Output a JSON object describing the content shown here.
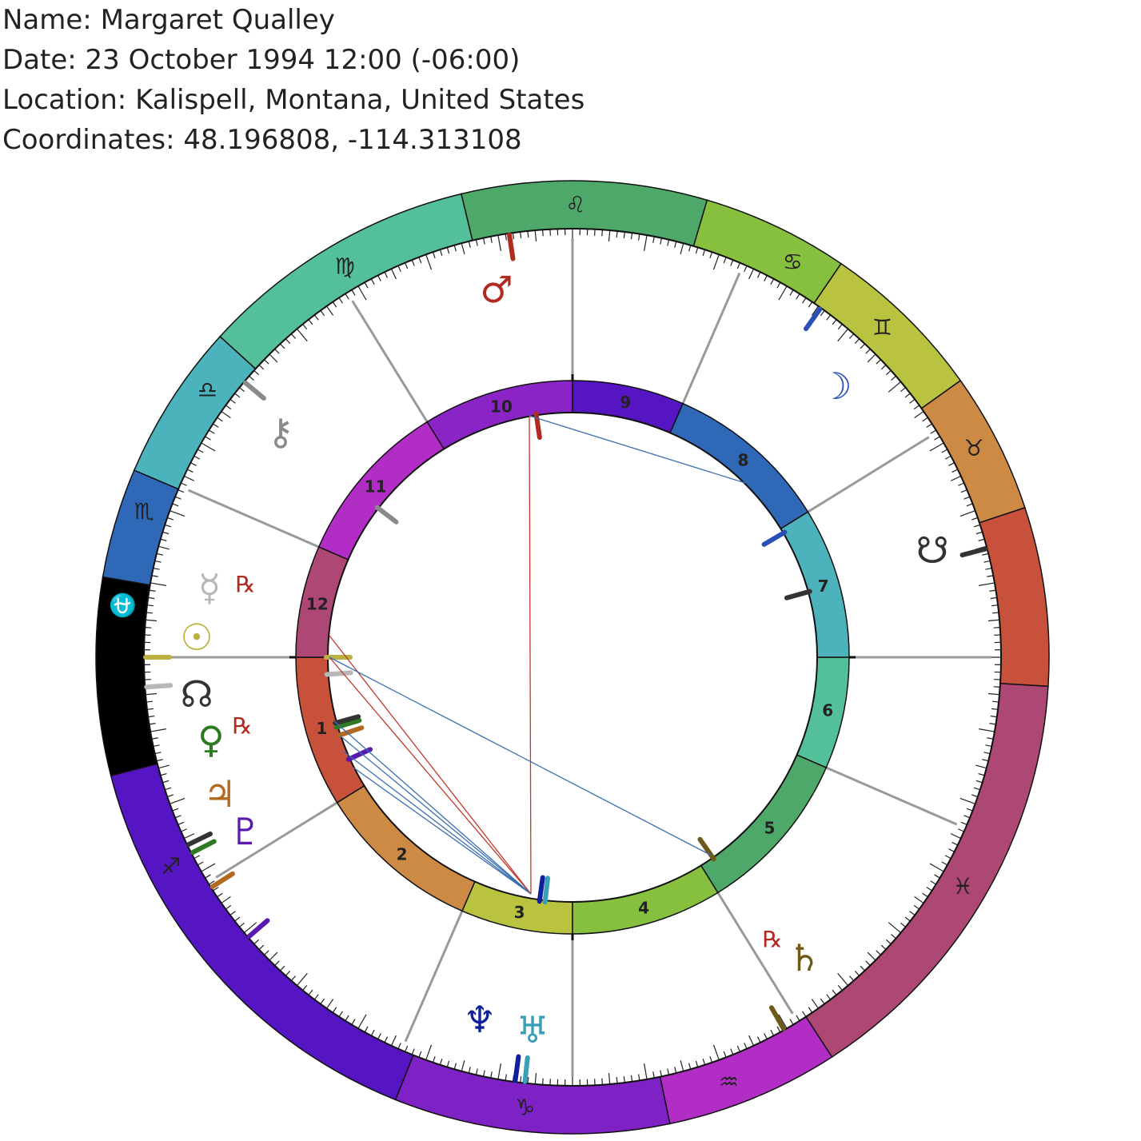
{
  "header": {
    "name": "Name: Margaret Qualley",
    "date": "Date: 23 October 1994 12:00 (-06:00)",
    "location": "Location: Kalispell, Montana, United States",
    "coordinates": "Coordinates: 48.196808, -114.313108"
  },
  "zodiac": [
    {
      "sign": "aries",
      "glyph": "♈",
      "color": "#c8513c"
    },
    {
      "sign": "taurus",
      "glyph": "♉",
      "color": "#cc8a45"
    },
    {
      "sign": "gemini",
      "glyph": "♊",
      "color": "#b9c340"
    },
    {
      "sign": "cancer",
      "glyph": "♋",
      "color": "#86c03e"
    },
    {
      "sign": "leo",
      "glyph": "♌",
      "color": "#4ea86a"
    },
    {
      "sign": "virgo",
      "glyph": "♍",
      "color": "#54c09a"
    },
    {
      "sign": "libra",
      "glyph": "♎",
      "color": "#4cb2bc"
    },
    {
      "sign": "scorpio",
      "glyph": "♏",
      "color": "#3068b8"
    },
    {
      "sign": "ophiuchus",
      "glyph": "⛎",
      "color": "#000000"
    },
    {
      "sign": "sagittarius",
      "glyph": "♐",
      "color": "#5515c2"
    },
    {
      "sign": "capricorn",
      "glyph": "♑",
      "color": "#7e22c6"
    },
    {
      "sign": "aquarius",
      "glyph": "♒",
      "color": "#b22cc6"
    },
    {
      "sign": "pisces",
      "glyph": "♓",
      "color": "#ad4874"
    }
  ],
  "houses": [
    {
      "num": "1",
      "color": "#c8513c"
    },
    {
      "num": "2",
      "color": "#cc8a45"
    },
    {
      "num": "3",
      "color": "#b9c340"
    },
    {
      "num": "4",
      "color": "#86c03e"
    },
    {
      "num": "5",
      "color": "#4ea86a"
    },
    {
      "num": "6",
      "color": "#54c09a"
    },
    {
      "num": "7",
      "color": "#4cb2bc"
    },
    {
      "num": "8",
      "color": "#3068b8"
    },
    {
      "num": "9",
      "color": "#5515c2"
    },
    {
      "num": "10",
      "color": "#8a24c6"
    },
    {
      "num": "11",
      "color": "#b22cc6"
    },
    {
      "num": "12",
      "color": "#ad4874"
    }
  ],
  "planets": [
    {
      "name": "sun",
      "glyph": "☉",
      "color": "#bcb040",
      "retro": false
    },
    {
      "name": "moon",
      "glyph": "☽",
      "color": "#2a4fb8",
      "retro": false
    },
    {
      "name": "mercury",
      "glyph": "☿",
      "color": "#b8b8b8",
      "retro": true
    },
    {
      "name": "venus",
      "glyph": "♀",
      "color": "#2e7a22",
      "retro": true
    },
    {
      "name": "mars",
      "glyph": "♂",
      "color": "#b02a20",
      "retro": false
    },
    {
      "name": "jupiter",
      "glyph": "♃",
      "color": "#b26a20",
      "retro": false
    },
    {
      "name": "saturn",
      "glyph": "♄",
      "color": "#6e5a18",
      "retro": true
    },
    {
      "name": "uranus",
      "glyph": "♅",
      "color": "#3aa0b8",
      "retro": false
    },
    {
      "name": "neptune",
      "glyph": "♆",
      "color": "#10209a",
      "retro": false
    },
    {
      "name": "pluto",
      "glyph": "♇",
      "color": "#5a1ab0",
      "retro": false
    },
    {
      "name": "chiron",
      "glyph": "⚷",
      "color": "#8a8a8a",
      "retro": false
    },
    {
      "name": "north-node",
      "glyph": "☊",
      "color": "#333333",
      "retro": false
    },
    {
      "name": "south-node",
      "glyph": "☋",
      "color": "#333333",
      "retro": false
    }
  ],
  "retro_mark": "℞",
  "aspect_colors": {
    "conjunction": "#3a6fb0",
    "opposition": "#c0392b"
  }
}
